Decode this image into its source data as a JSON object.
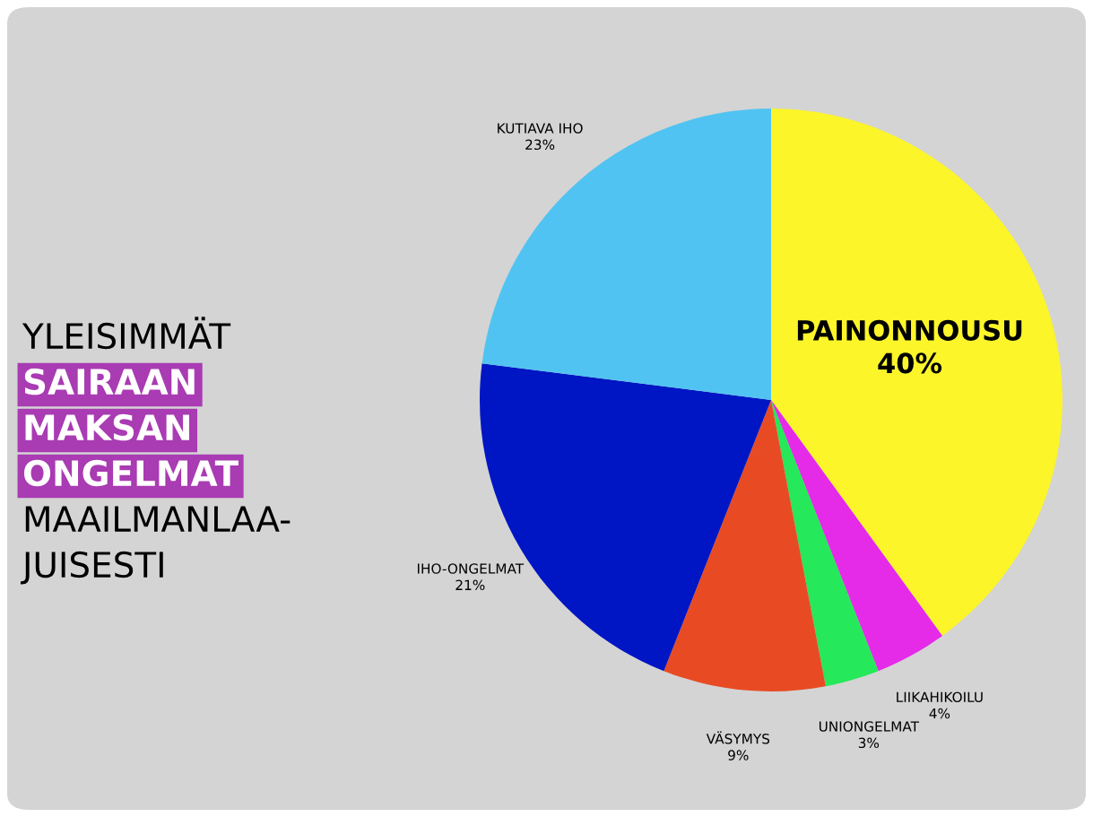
{
  "chart_data": {
    "type": "pie",
    "title": "YLEISIMMÄT\nSAIRAAN\nMAKSAN\nONGELMAT\nMAAILMANLAA-\nJUISESTI",
    "categories": [
      "PAINONNOUSU",
      "LIIKAHIKOILU",
      "UNIONGELMAT",
      "VÄSYMYS",
      "IHO-ONGELMAT",
      "KUTIAVA IHO"
    ],
    "values": [
      40,
      4,
      3,
      9,
      21,
      23
    ],
    "value_labels": [
      "40%",
      "4%",
      "3%",
      "9%",
      "21%",
      "23%"
    ],
    "colors": [
      "#fbf52a",
      "#e52be8",
      "#25e85a",
      "#e84b24",
      "#0016c4",
      "#51c3f2"
    ],
    "legend": false
  }
}
